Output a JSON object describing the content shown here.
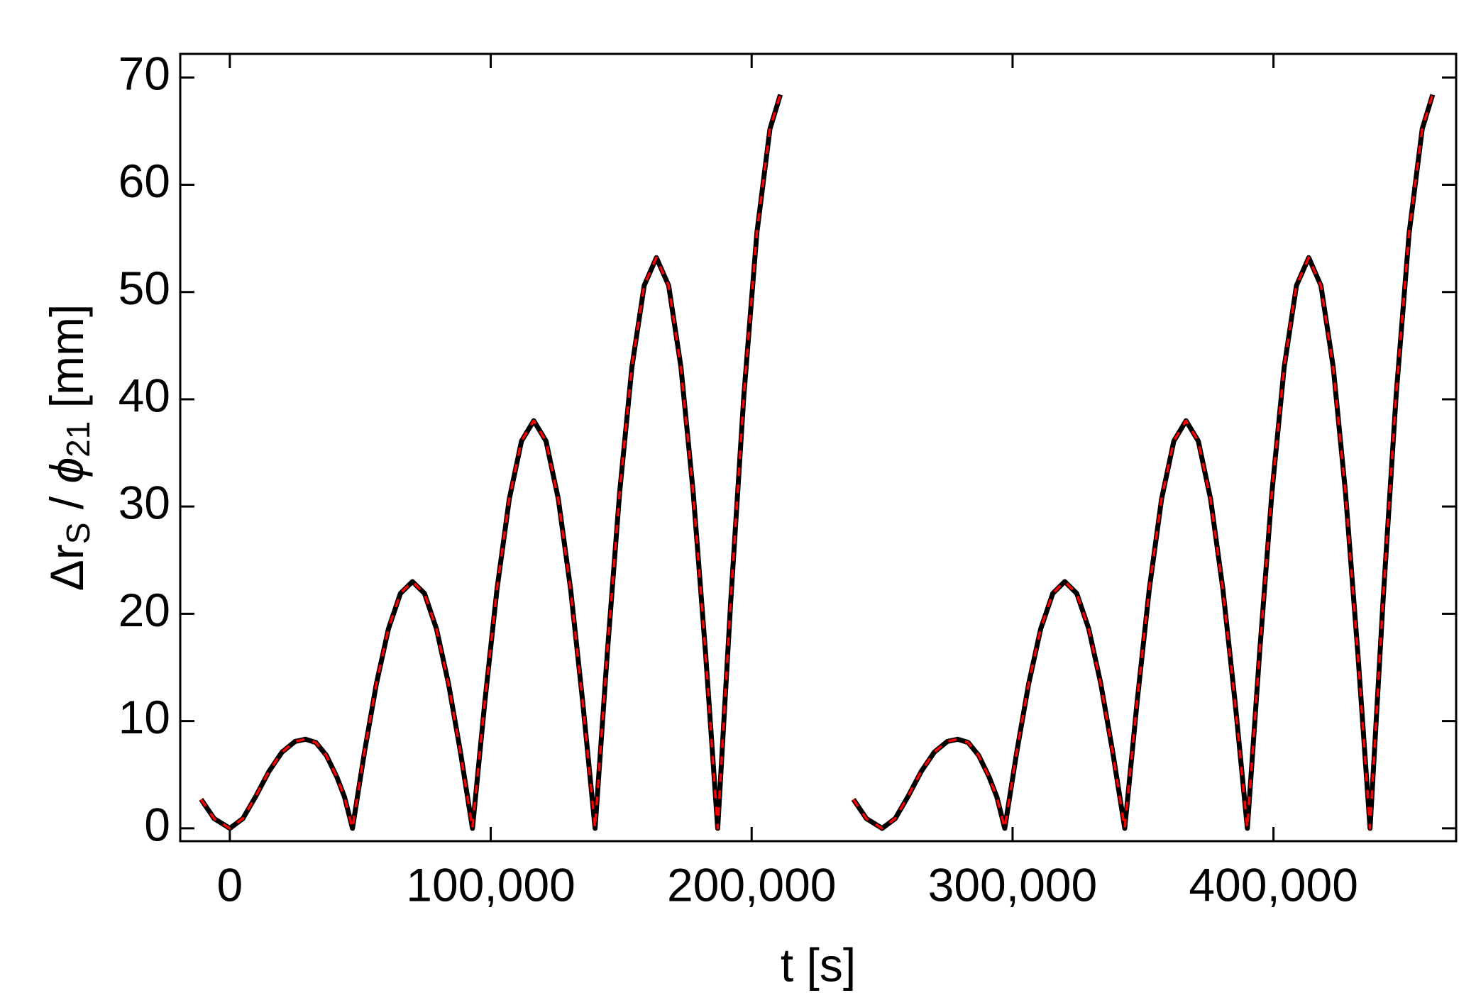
{
  "chart_data": {
    "type": "line",
    "x": [
      -11000,
      -6000,
      0,
      5000,
      10000,
      15000,
      20000,
      25000,
      29000,
      33000,
      37000,
      41000,
      44000,
      47000,
      51600,
      56200,
      60800,
      65400,
      70000,
      74600,
      79200,
      83800,
      88400,
      93000,
      97700,
      102400,
      107100,
      111800,
      116500,
      121200,
      125900,
      130600,
      135300,
      140000,
      144700,
      149400,
      154100,
      158800,
      163500,
      168200,
      172900,
      177600,
      182300,
      187000,
      192000,
      197000,
      202000,
      207000,
      211000,
      225000,
      239000,
      244000,
      250000,
      255000,
      260000,
      265000,
      270000,
      275000,
      279000,
      283000,
      287000,
      291000,
      294000,
      297000,
      301600,
      306200,
      310800,
      315400,
      320000,
      324600,
      329200,
      333800,
      338400,
      343000,
      347700,
      352400,
      357100,
      361800,
      366500,
      371200,
      375900,
      380600,
      385300,
      390000,
      394700,
      399400,
      404100,
      408800,
      413500,
      418200,
      422900,
      427600,
      432300,
      437000,
      442000,
      447000,
      452000,
      457000,
      461000
    ],
    "series": [
      {
        "color": "#000000",
        "dashed": false,
        "values": [
          2.7,
          0.9,
          0,
          0.9,
          3.0,
          5.3,
          7.1,
          8.1,
          8.3,
          8.0,
          6.8,
          4.8,
          2.9,
          0,
          7.1,
          13.5,
          18.6,
          21.9,
          23,
          21.9,
          18.6,
          13.5,
          7.1,
          0,
          11.7,
          22.3,
          30.7,
          36.1,
          38,
          36.1,
          30.7,
          22.3,
          11.7,
          0,
          16.4,
          31.3,
          43.0,
          50.6,
          53.2,
          50.6,
          43.0,
          31.3,
          16.4,
          0,
          21.2,
          40.3,
          55.5,
          65.2,
          68.4,
          null,
          2.7,
          0.9,
          0,
          0.9,
          3.0,
          5.3,
          7.1,
          8.1,
          8.3,
          8.0,
          6.8,
          4.8,
          2.9,
          0,
          7.1,
          13.5,
          18.6,
          21.9,
          23,
          21.9,
          18.6,
          13.5,
          7.1,
          0,
          11.7,
          22.3,
          30.7,
          36.1,
          38,
          36.1,
          30.7,
          22.3,
          11.7,
          0,
          16.4,
          31.3,
          43.0,
          50.6,
          53.2,
          50.6,
          43.0,
          31.3,
          16.4,
          0,
          21.2,
          40.3,
          55.5,
          65.2,
          68.4
        ]
      },
      {
        "color": "#ff0000",
        "dashed": true,
        "values": [
          2.7,
          0.9,
          0,
          0.9,
          3.0,
          5.3,
          7.1,
          8.1,
          8.3,
          8.0,
          6.8,
          4.8,
          2.9,
          0,
          7.1,
          13.5,
          18.6,
          21.9,
          23,
          21.9,
          18.6,
          13.5,
          7.1,
          0,
          11.7,
          22.3,
          30.7,
          36.1,
          38,
          36.1,
          30.7,
          22.3,
          11.7,
          0,
          16.4,
          31.3,
          43.0,
          50.6,
          53.2,
          50.6,
          43.0,
          31.3,
          16.4,
          0,
          21.2,
          40.3,
          55.5,
          65.2,
          68.4,
          null,
          2.7,
          0.9,
          0,
          0.9,
          3.0,
          5.3,
          7.1,
          8.1,
          8.3,
          8.0,
          6.8,
          4.8,
          2.9,
          0,
          7.1,
          13.5,
          18.6,
          21.9,
          23,
          21.9,
          18.6,
          13.5,
          7.1,
          0,
          11.7,
          22.3,
          30.7,
          36.1,
          38,
          36.1,
          30.7,
          22.3,
          11.7,
          0,
          16.4,
          31.3,
          43.0,
          50.6,
          53.2,
          50.6,
          43.0,
          31.3,
          16.4,
          0,
          21.2,
          40.3,
          55.5,
          65.2,
          68.4
        ]
      }
    ],
    "xlabel": "t [s]",
    "ylabel": [
      "Δr",
      "S",
      " / ",
      "ϕ",
      "21",
      " [mm]"
    ],
    "xlim": [
      -19000,
      470000
    ],
    "ylim": [
      -1.2,
      72.2
    ],
    "xticks": [
      0,
      {
        "value": 100000,
        "label": "100,000"
      },
      {
        "value": 200000,
        "label": "200,000"
      },
      {
        "value": 300000,
        "label": "300,000"
      },
      {
        "value": 400000,
        "label": "400,000"
      }
    ],
    "yticks": [
      0,
      10,
      20,
      30,
      40,
      50,
      60,
      70
    ],
    "grid": false
  }
}
